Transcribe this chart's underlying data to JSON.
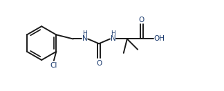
{
  "bg_color": "#ffffff",
  "line_color": "#1a1a1a",
  "text_color": "#1a3a6e",
  "bond_lw": 1.4,
  "font_size": 7.5,
  "fig_width": 3.24,
  "fig_height": 1.32,
  "dpi": 100,
  "xlim": [
    0,
    9.5
  ],
  "ylim": [
    0,
    3.8
  ]
}
